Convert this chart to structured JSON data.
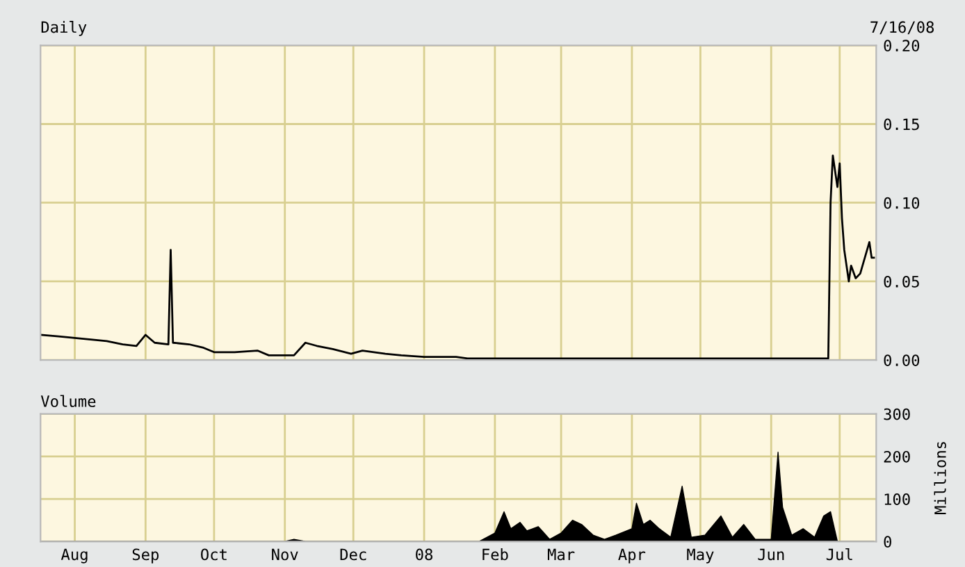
{
  "chart_data": [
    {
      "type": "line",
      "title": "Daily",
      "annotations": [
        "7/16/08"
      ],
      "grid": true,
      "tick_labels": "y",
      "color": "#000000",
      "x": [
        "2007-07-17",
        "2007-07-25",
        "2007-08-01",
        "2007-08-08",
        "2007-08-15",
        "2007-08-22",
        "2007-08-28",
        "2007-09-01",
        "2007-09-05",
        "2007-09-11",
        "2007-09-12",
        "2007-09-13",
        "2007-09-20",
        "2007-09-26",
        "2007-10-01",
        "2007-10-10",
        "2007-10-20",
        "2007-10-25",
        "2007-11-05",
        "2007-11-10",
        "2007-11-15",
        "2007-11-22",
        "2007-11-30",
        "2007-12-05",
        "2007-12-15",
        "2007-12-22",
        "2008-01-01",
        "2008-01-15",
        "2008-01-20",
        "2008-02-05",
        "2008-03-01",
        "2008-04-01",
        "2008-05-01",
        "2008-06-01",
        "2008-06-26",
        "2008-06-27",
        "2008-06-28",
        "2008-06-30",
        "2008-07-01",
        "2008-07-02",
        "2008-07-03",
        "2008-07-05",
        "2008-07-06",
        "2008-07-08",
        "2008-07-10",
        "2008-07-14",
        "2008-07-15",
        "2008-07-16"
      ],
      "values": [
        0.016,
        0.015,
        0.014,
        0.013,
        0.012,
        0.01,
        0.009,
        0.016,
        0.011,
        0.01,
        0.07,
        0.011,
        0.01,
        0.008,
        0.005,
        0.005,
        0.006,
        0.003,
        0.003,
        0.011,
        0.009,
        0.007,
        0.004,
        0.006,
        0.004,
        0.003,
        0.002,
        0.002,
        0.001,
        0.001,
        0.001,
        0.001,
        0.001,
        0.001,
        0.001,
        0.1,
        0.13,
        0.11,
        0.125,
        0.09,
        0.07,
        0.05,
        0.06,
        0.052,
        0.055,
        0.075,
        0.065,
        0.065
      ],
      "xlim": [
        "2007-07-17",
        "2008-07-17"
      ],
      "ylim": [
        0,
        0.2
      ],
      "yticks": [
        {
          "value": 0,
          "label": "0.00"
        },
        {
          "value": 0.05,
          "label": "0.05"
        },
        {
          "value": 0.1,
          "label": "0.10"
        },
        {
          "value": 0.15,
          "label": "0.15"
        },
        {
          "value": 0.2,
          "label": "0.20"
        }
      ],
      "xticks": [
        {
          "value": "2007-08-01",
          "label": null
        },
        {
          "value": "2007-09-01",
          "label": null
        },
        {
          "value": "2007-10-01",
          "label": null
        },
        {
          "value": "2007-11-01",
          "label": null
        },
        {
          "value": "2007-12-01",
          "label": null
        },
        {
          "value": "2008-01-01",
          "label": null
        },
        {
          "value": "2008-02-01",
          "label": null
        },
        {
          "value": "2008-03-01",
          "label": null
        },
        {
          "value": "2008-04-01",
          "label": null
        },
        {
          "value": "2008-05-01",
          "label": null
        },
        {
          "value": "2008-06-01",
          "label": null
        },
        {
          "value": "2008-07-01",
          "label": null
        }
      ]
    },
    {
      "type": "area",
      "title": "Volume",
      "ylabel": "Millions",
      "grid": true,
      "color": "#000000",
      "x": [
        "2007-07-17",
        "2007-11-01",
        "2007-11-05",
        "2007-11-10",
        "2008-01-25",
        "2008-02-01",
        "2008-02-05",
        "2008-02-08",
        "2008-02-12",
        "2008-02-15",
        "2008-02-20",
        "2008-02-25",
        "2008-03-01",
        "2008-03-06",
        "2008-03-10",
        "2008-03-15",
        "2008-03-20",
        "2008-03-25",
        "2008-04-01",
        "2008-04-03",
        "2008-04-06",
        "2008-04-09",
        "2008-04-13",
        "2008-04-18",
        "2008-04-23",
        "2008-04-27",
        "2008-05-03",
        "2008-05-10",
        "2008-05-15",
        "2008-05-20",
        "2008-05-25",
        "2008-06-01",
        "2008-06-04",
        "2008-06-06",
        "2008-06-10",
        "2008-06-15",
        "2008-06-20",
        "2008-06-24",
        "2008-06-27",
        "2008-06-30",
        "2008-07-16"
      ],
      "values": [
        0,
        0,
        5,
        0,
        0,
        20,
        70,
        30,
        45,
        25,
        35,
        5,
        20,
        50,
        40,
        15,
        5,
        15,
        30,
        90,
        40,
        50,
        30,
        10,
        130,
        10,
        15,
        60,
        10,
        40,
        5,
        5,
        210,
        80,
        15,
        30,
        10,
        60,
        70,
        0,
        0
      ],
      "xlim": [
        "2007-07-17",
        "2008-07-17"
      ],
      "ylim": [
        0,
        300
      ],
      "yticks": [
        0,
        100,
        200,
        300
      ],
      "xticks": [
        {
          "value": "2007-08-01",
          "label": "Aug"
        },
        {
          "value": "2007-09-01",
          "label": "Sep"
        },
        {
          "value": "2007-10-01",
          "label": "Oct"
        },
        {
          "value": "2007-11-01",
          "label": "Nov"
        },
        {
          "value": "2007-12-01",
          "label": "Dec"
        },
        {
          "value": "2008-01-01",
          "label": "08"
        },
        {
          "value": "2008-02-01",
          "label": "Feb"
        },
        {
          "value": "2008-03-01",
          "label": "Mar"
        },
        {
          "value": "2008-04-01",
          "label": "Apr"
        },
        {
          "value": "2008-05-01",
          "label": "May"
        },
        {
          "value": "2008-06-01",
          "label": "Jun"
        },
        {
          "value": "2008-07-01",
          "label": "Jul"
        }
      ]
    }
  ]
}
